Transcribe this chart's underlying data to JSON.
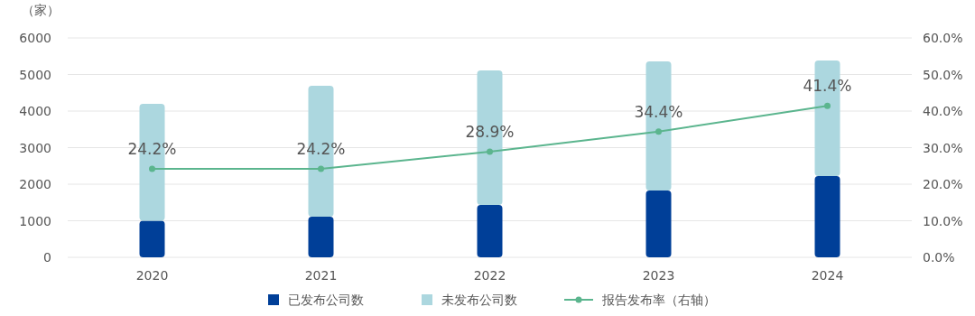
{
  "chart_data": {
    "type": "bar",
    "stacked": true,
    "ylabel": "（家）",
    "categories": [
      "2020",
      "2021",
      "2022",
      "2023",
      "2024"
    ],
    "ylim": [
      0,
      6000
    ],
    "yticks": [
      0,
      1000,
      2000,
      3000,
      4000,
      5000,
      6000
    ],
    "y2lim": [
      0,
      60
    ],
    "y2ticks": [
      {
        "value": 0,
        "label": "0.0%"
      },
      {
        "value": 10,
        "label": "10.0%"
      },
      {
        "value": 20,
        "label": "20.0%"
      },
      {
        "value": 30,
        "label": "30.0%"
      },
      {
        "value": 40,
        "label": "40.0%"
      },
      {
        "value": 50,
        "label": "50.0%"
      },
      {
        "value": 60,
        "label": "60.0%"
      }
    ],
    "grid": "y",
    "legend": "bottom",
    "marker": "circle",
    "series": [
      {
        "name": "已发布公司数",
        "color": "#003f98",
        "values": [
          1000,
          1110,
          1430,
          1830,
          2220
        ]
      },
      {
        "name": "未发布公司数",
        "color": "#acd7df",
        "values": [
          3200,
          3580,
          3680,
          3530,
          3160
        ]
      },
      {
        "name": "报告发布率（右轴）",
        "type": "line",
        "axis": "y2",
        "color": "#5bb58e",
        "values": [
          24.2,
          24.2,
          28.9,
          34.4,
          41.4
        ],
        "value_labels": [
          "24.2%",
          "24.2%",
          "28.9%",
          "34.4%",
          "41.4%"
        ]
      }
    ]
  }
}
